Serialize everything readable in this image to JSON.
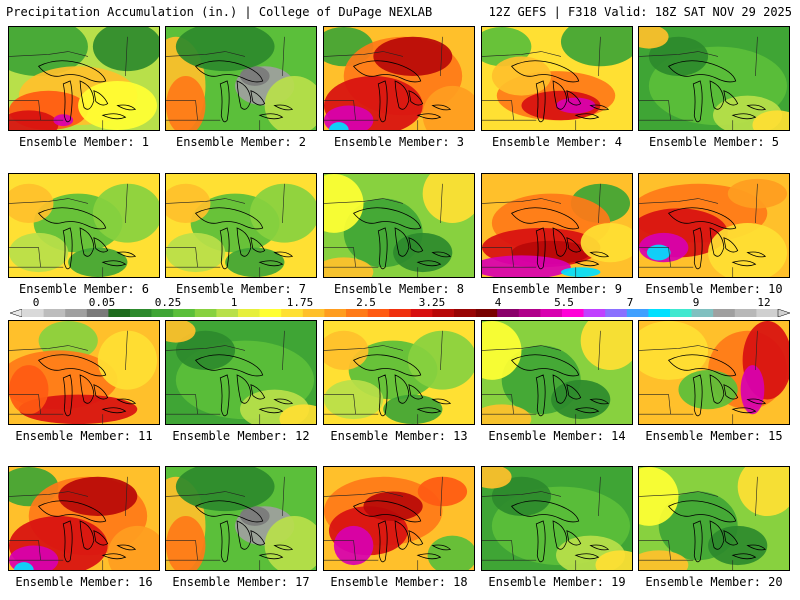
{
  "header": {
    "left": "Precipitation Accumulation (in.) | College of DuPage NEXLAB",
    "right": "12Z GEFS | F318 Valid: 18Z SAT NOV 29 2025"
  },
  "colorbar": {
    "tick_labels": [
      "0",
      "0.05",
      "0.25",
      "1",
      "1.75",
      "2.5",
      "3.25",
      "4",
      "5.5",
      "7",
      "9",
      "12"
    ],
    "colors": [
      "#d9d9d9",
      "#bdbdbd",
      "#a0a0a0",
      "#7a7a7a",
      "#1e6b1e",
      "#2d8a2d",
      "#3fa535",
      "#5bbf3a",
      "#88d13f",
      "#b8e04a",
      "#e6ef3c",
      "#ffff33",
      "#ffe033",
      "#ffc02b",
      "#ff9d1f",
      "#ff7a18",
      "#ff5a12",
      "#f0300e",
      "#d81010",
      "#b80808",
      "#980404",
      "#780000",
      "#8a006a",
      "#b0008a",
      "#d800b0",
      "#ff00d8",
      "#c040ff",
      "#8a70ff",
      "#40a0ff",
      "#00e0ff",
      "#40e8d0",
      "#80c0c0",
      "#a0a0a0",
      "#b8b8b8",
      "#d0d0d0"
    ]
  },
  "members": [
    {
      "label": "Ensemble Member: 1",
      "scheme": "green-red-sw"
    },
    {
      "label": "Ensemble Member: 2",
      "scheme": "green-gray"
    },
    {
      "label": "Ensemble Member: 3",
      "scheme": "red-heavy-sw"
    },
    {
      "label": "Ensemble Member: 4",
      "scheme": "yellow-magenta-band"
    },
    {
      "label": "Ensemble Member: 5",
      "scheme": "mostly-green"
    },
    {
      "label": "Ensemble Member: 6",
      "scheme": "yellow-green"
    },
    {
      "label": "Ensemble Member: 7",
      "scheme": "yellow-green"
    },
    {
      "label": "Ensemble Member: 8",
      "scheme": "green-yellow"
    },
    {
      "label": "Ensemble Member: 9",
      "scheme": "magenta-south"
    },
    {
      "label": "Ensemble Member: 10",
      "scheme": "red-cyan-sw"
    },
    {
      "label": "Ensemble Member: 11",
      "scheme": "red-south"
    },
    {
      "label": "Ensemble Member: 12",
      "scheme": "mostly-green"
    },
    {
      "label": "Ensemble Member: 13",
      "scheme": "yellow-green"
    },
    {
      "label": "Ensemble Member: 14",
      "scheme": "green-yellow"
    },
    {
      "label": "Ensemble Member: 15",
      "scheme": "red-magenta-east"
    },
    {
      "label": "Ensemble Member: 16",
      "scheme": "red-heavy-sw"
    },
    {
      "label": "Ensemble Member: 17",
      "scheme": "green-gray"
    },
    {
      "label": "Ensemble Member: 18",
      "scheme": "red-magenta-band"
    },
    {
      "label": "Ensemble Member: 19",
      "scheme": "mostly-green"
    },
    {
      "label": "Ensemble Member: 20",
      "scheme": "green-yellow"
    }
  ]
}
